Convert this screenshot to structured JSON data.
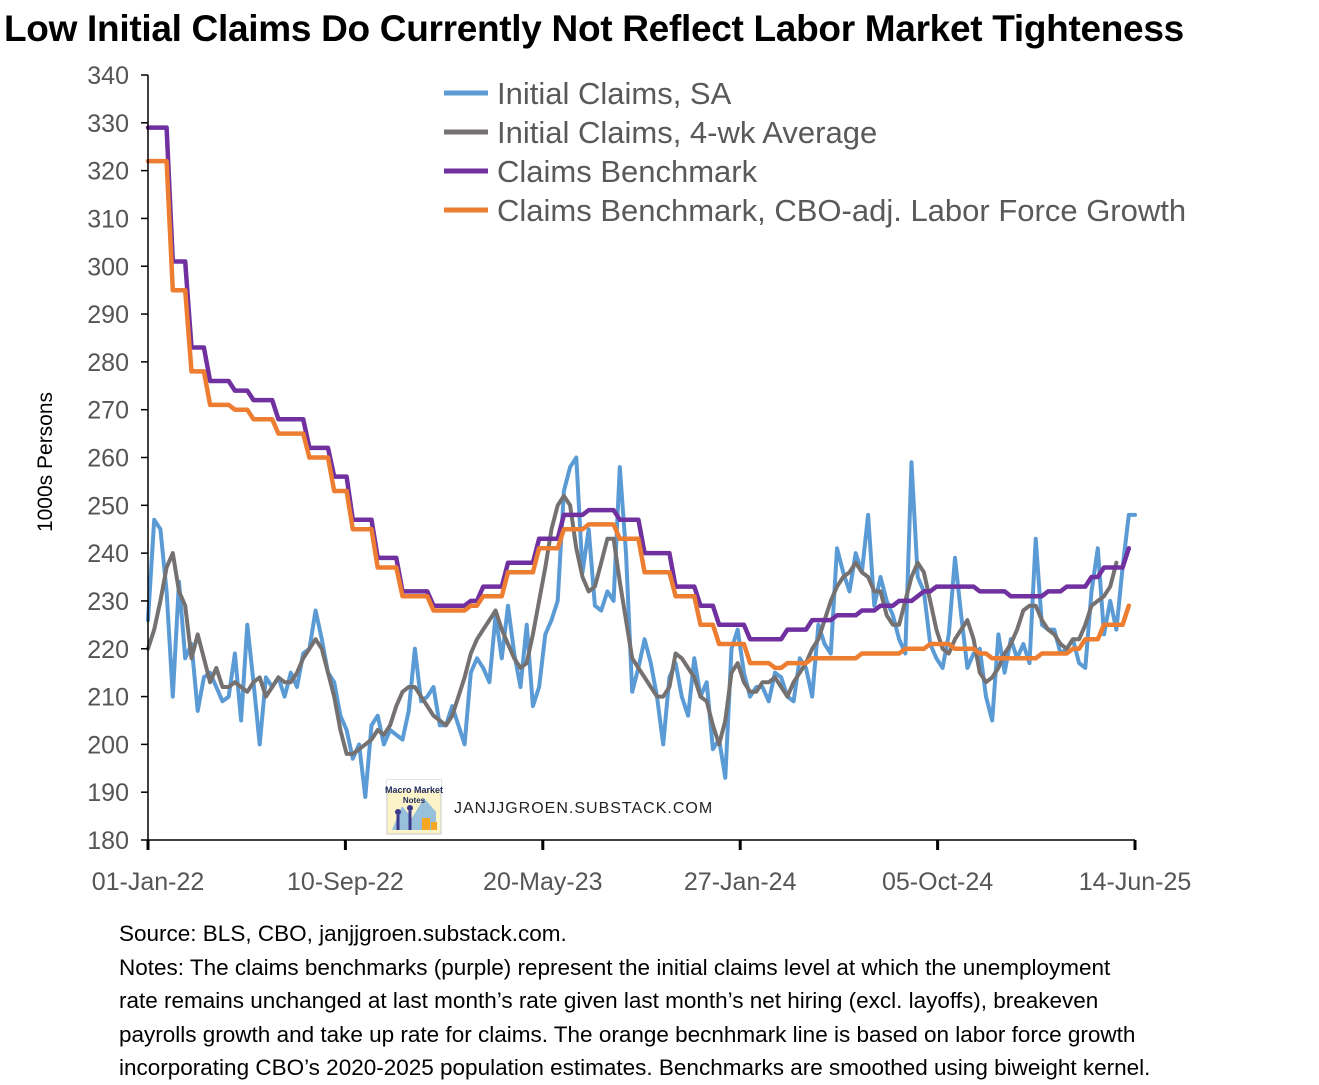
{
  "title": "Low Initial Claims Do Currently Not Reflect Labor Market Tighteness",
  "chart_data": {
    "type": "line",
    "ylabel": "1000s Persons",
    "ylim": [
      180,
      340
    ],
    "yticks": [
      180,
      190,
      200,
      210,
      220,
      230,
      240,
      250,
      260,
      270,
      280,
      290,
      300,
      310,
      320,
      330,
      340
    ],
    "x_start": "2022-01-01",
    "x_end": "2025-06-14",
    "xticks": [
      "01-Jan-22",
      "10-Sep-22",
      "20-May-23",
      "27-Jan-24",
      "05-Oct-24",
      "14-Jun-25"
    ],
    "grid": false,
    "legend_position": "top-right",
    "series": [
      {
        "name": "Initial Claims, SA",
        "color": "#5b9bd5",
        "values": [
          226,
          247,
          245,
          232,
          210,
          234,
          218,
          221,
          207,
          214,
          215,
          212,
          209,
          210,
          219,
          205,
          225,
          213,
          200,
          214,
          212,
          214,
          210,
          215,
          212,
          219,
          220,
          228,
          222,
          215,
          213,
          206,
          203,
          197,
          200,
          189,
          204,
          206,
          200,
          203,
          202,
          201,
          207,
          220,
          209,
          210,
          212,
          204,
          204,
          208,
          204,
          200,
          215,
          218,
          216,
          213,
          227,
          218,
          229,
          219,
          212,
          225,
          208,
          212,
          223,
          226,
          230,
          253,
          258,
          260,
          236,
          245,
          229,
          228,
          232,
          230,
          258,
          240,
          211,
          216,
          222,
          217,
          210,
          200,
          214,
          217,
          210,
          206,
          218,
          210,
          213,
          199,
          201,
          193,
          220,
          224,
          215,
          210,
          212,
          212,
          209,
          215,
          214,
          210,
          209,
          218,
          216,
          210,
          225,
          221,
          219,
          241,
          236,
          232,
          240,
          236,
          248,
          229,
          235,
          230,
          227,
          222,
          219,
          259,
          235,
          232,
          221,
          218,
          216,
          223,
          239,
          227,
          216,
          219,
          220,
          210,
          205,
          223,
          215,
          222,
          218,
          221,
          217,
          243,
          225,
          224,
          224,
          219,
          220,
          222,
          217,
          216,
          232,
          241,
          223,
          230,
          224,
          237,
          248,
          248
        ]
      },
      {
        "name": "Initial Claims, 4-wk Average",
        "color": "#767171",
        "values": [
          220,
          224,
          230,
          237,
          240,
          232,
          229,
          218,
          223,
          218,
          213,
          216,
          212,
          212,
          213,
          212,
          211,
          213,
          214,
          210,
          212,
          214,
          213,
          213,
          215,
          218,
          220,
          222,
          220,
          215,
          210,
          203,
          198,
          198,
          199,
          200,
          201,
          203,
          202,
          204,
          208,
          211,
          212,
          212,
          210,
          208,
          206,
          205,
          204,
          206,
          210,
          214,
          219,
          222,
          224,
          226,
          228,
          224,
          221,
          218,
          216,
          217,
          223,
          230,
          237,
          245,
          250,
          252,
          250,
          241,
          235,
          232,
          233,
          238,
          243,
          243,
          234,
          226,
          218,
          216,
          214,
          212,
          210,
          210,
          212,
          219,
          218,
          216,
          214,
          210,
          209,
          204,
          200,
          205,
          215,
          217,
          213,
          211,
          211,
          213,
          213,
          214,
          212,
          210,
          213,
          215,
          217,
          220,
          222,
          226,
          230,
          233,
          235,
          236,
          238,
          236,
          235,
          232,
          232,
          227,
          225,
          225,
          230,
          235,
          238,
          236,
          230,
          224,
          220,
          219,
          222,
          224,
          226,
          222,
          215,
          213,
          214,
          216,
          219,
          221,
          224,
          228,
          229,
          229,
          226,
          224,
          223,
          221,
          220,
          222,
          222,
          225,
          229,
          230,
          231,
          233,
          238
        ]
      },
      {
        "name": "Claims Benchmark",
        "color": "#7030a0",
        "values": [
          329,
          329,
          329,
          329,
          301,
          301,
          301,
          283,
          283,
          283,
          276,
          276,
          276,
          276,
          274,
          274,
          274,
          272,
          272,
          272,
          272,
          268,
          268,
          268,
          268,
          268,
          262,
          262,
          262,
          262,
          256,
          256,
          256,
          247,
          247,
          247,
          247,
          239,
          239,
          239,
          239,
          232,
          232,
          232,
          232,
          232,
          229,
          229,
          229,
          229,
          229,
          229,
          230,
          230,
          233,
          233,
          233,
          233,
          238,
          238,
          238,
          238,
          238,
          243,
          243,
          243,
          243,
          248,
          248,
          248,
          248,
          249,
          249,
          249,
          249,
          249,
          247,
          247,
          247,
          247,
          240,
          240,
          240,
          240,
          240,
          233,
          233,
          233,
          233,
          229,
          229,
          229,
          225,
          225,
          225,
          225,
          225,
          222,
          222,
          222,
          222,
          222,
          222,
          224,
          224,
          224,
          224,
          226,
          226,
          226,
          226,
          227,
          227,
          227,
          227,
          228,
          228,
          228,
          229,
          229,
          229,
          230,
          230,
          230,
          231,
          232,
          232,
          233,
          233,
          233,
          233,
          233,
          233,
          233,
          232,
          232,
          232,
          232,
          232,
          231,
          231,
          231,
          231,
          231,
          231,
          232,
          232,
          232,
          233,
          233,
          233,
          233,
          235,
          235,
          237,
          237,
          237,
          237,
          241
        ]
      },
      {
        "name": "Claims Benchmark, CBO-adj. Labor Force Growth",
        "color": "#ed7d31",
        "values": [
          322,
          322,
          322,
          322,
          295,
          295,
          295,
          278,
          278,
          278,
          271,
          271,
          271,
          271,
          270,
          270,
          270,
          268,
          268,
          268,
          268,
          265,
          265,
          265,
          265,
          265,
          260,
          260,
          260,
          260,
          253,
          253,
          253,
          245,
          245,
          245,
          245,
          237,
          237,
          237,
          237,
          231,
          231,
          231,
          231,
          231,
          228,
          228,
          228,
          228,
          228,
          228,
          229,
          229,
          231,
          231,
          231,
          231,
          236,
          236,
          236,
          236,
          236,
          241,
          241,
          241,
          241,
          245,
          245,
          245,
          245,
          246,
          246,
          246,
          246,
          246,
          243,
          243,
          243,
          243,
          236,
          236,
          236,
          236,
          236,
          231,
          231,
          231,
          231,
          225,
          225,
          225,
          221,
          221,
          221,
          221,
          221,
          217,
          217,
          217,
          217,
          216,
          216,
          217,
          217,
          217,
          217,
          218,
          218,
          218,
          218,
          218,
          218,
          218,
          218,
          219,
          219,
          219,
          219,
          219,
          219,
          219,
          220,
          220,
          220,
          220,
          221,
          221,
          221,
          221,
          220,
          220,
          220,
          220,
          219,
          219,
          218,
          218,
          218,
          218,
          218,
          218,
          218,
          218,
          219,
          219,
          219,
          219,
          219,
          220,
          220,
          222,
          222,
          222,
          225,
          225,
          225,
          225,
          229
        ]
      }
    ]
  },
  "watermark": {
    "logo_text_1": "Macro Market",
    "logo_text_2": "Notes",
    "url": "JANJJGROEN.SUBSTACK.COM"
  },
  "notes": {
    "source": "Source: BLS, CBO, janjjgroen.substack.com.",
    "line1": "Notes: The claims benchmarks (purple) represent the initial claims level at which the unemployment",
    "line2": "rate remains unchanged at last month’s rate given last month’s net hiring (excl. layoffs), breakeven",
    "line3": "payrolls growth and take up rate for claims. The orange becnhmark line is based on labor force growth",
    "line4": "incorporating CBO’s 2020-2025 population estimates. Benchmarks are smoothed using biweight kernel."
  }
}
